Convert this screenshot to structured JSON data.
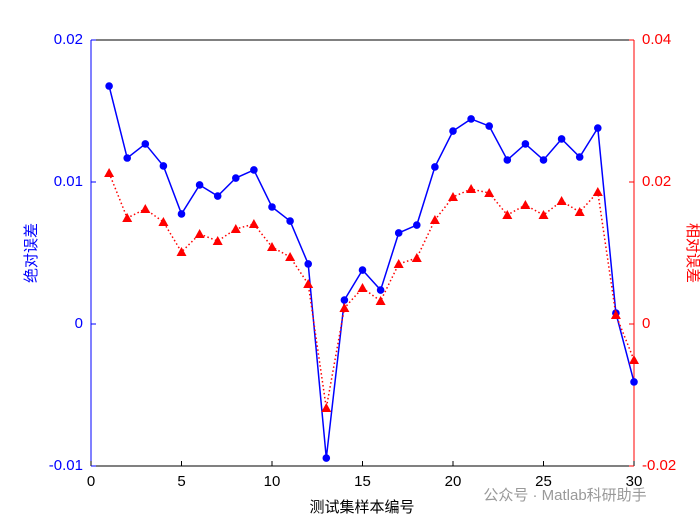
{
  "chart_data": {
    "type": "line",
    "xlabel": "测试集样本编号",
    "ylabel": "绝对误差",
    "y2label": "相对误差",
    "watermark": "公众号 · Matlab科研助手",
    "x": [
      1,
      2,
      3,
      4,
      5,
      6,
      7,
      8,
      9,
      10,
      11,
      12,
      13,
      14,
      15,
      16,
      17,
      18,
      19,
      20,
      21,
      22,
      23,
      24,
      25,
      26,
      27,
      28,
      29,
      30
    ],
    "xlim": [
      0,
      30
    ],
    "xticks": [
      0,
      5,
      10,
      15,
      20,
      25,
      30
    ],
    "ylim": [
      -0.01,
      0.02
    ],
    "yticks": [
      -0.01,
      0,
      0.01,
      0.02
    ],
    "y2lim": [
      -0.02,
      0.04
    ],
    "y2ticks": [
      -0.02,
      0,
      0.02,
      0.04
    ],
    "ycolor": "#0000ff",
    "y2color": "#ff0000",
    "series": [
      {
        "name": "绝对误差",
        "color": "#0000ff",
        "marker": "circle",
        "linestyle": "solid",
        "values": [
          0.01676,
          0.01169,
          0.01268,
          0.01113,
          0.00775,
          0.00979,
          0.00901,
          0.01028,
          0.01085,
          0.00824,
          0.00725,
          0.00423,
          -0.00944,
          0.00169,
          0.0038,
          0.00239,
          0.00641,
          0.00697,
          0.01106,
          0.01359,
          0.01444,
          0.01394,
          0.01155,
          0.01268,
          0.01155,
          0.01303,
          0.01176,
          0.0138,
          0.00077,
          -0.00408
        ]
      },
      {
        "name": "相对误差",
        "color": "#ff0000",
        "marker": "triangle",
        "linestyle": "dotted",
        "axis": "y2",
        "values": [
          0.02127,
          0.01493,
          0.0162,
          0.01437,
          0.01014,
          0.01268,
          0.01169,
          0.01338,
          0.01408,
          0.01085,
          0.00944,
          0.00563,
          -0.01183,
          0.00225,
          0.00507,
          0.00324,
          0.00845,
          0.0093,
          0.01465,
          0.01789,
          0.01901,
          0.01845,
          0.01535,
          0.01676,
          0.01535,
          0.01732,
          0.01577,
          0.01859,
          0.00127,
          -0.00507
        ]
      }
    ]
  }
}
